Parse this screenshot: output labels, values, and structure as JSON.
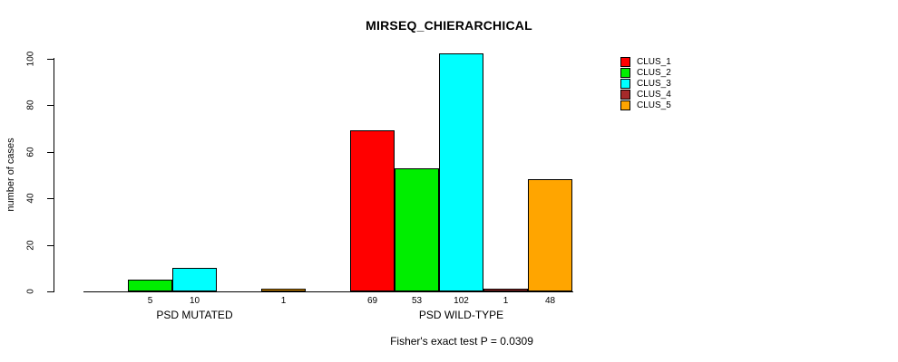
{
  "chart_data": {
    "type": "bar",
    "title": "MIRSEQ_CHIERARCHICAL",
    "ylabel": "number of cases",
    "xlabel": "",
    "annotation": "Fisher's exact test P = 0.0309",
    "categories": [
      "PSD MUTATED",
      "PSD WILD-TYPE"
    ],
    "series": [
      {
        "name": "CLUS_1",
        "color": "#ff0000",
        "values": [
          0,
          69
        ]
      },
      {
        "name": "CLUS_2",
        "color": "#00ee00",
        "values": [
          5,
          53
        ]
      },
      {
        "name": "CLUS_3",
        "color": "#00ffff",
        "values": [
          10,
          102
        ]
      },
      {
        "name": "CLUS_4",
        "color": "#a52a2a",
        "values": [
          0,
          1
        ]
      },
      {
        "name": "CLUS_5",
        "color": "#ffa500",
        "values": [
          1,
          48
        ]
      }
    ],
    "yticks": [
      0,
      20,
      40,
      60,
      80,
      100
    ],
    "ylim": [
      0,
      102
    ],
    "grid": false,
    "legend_position": "right",
    "value_labels": "shown under each nonzero bar"
  }
}
